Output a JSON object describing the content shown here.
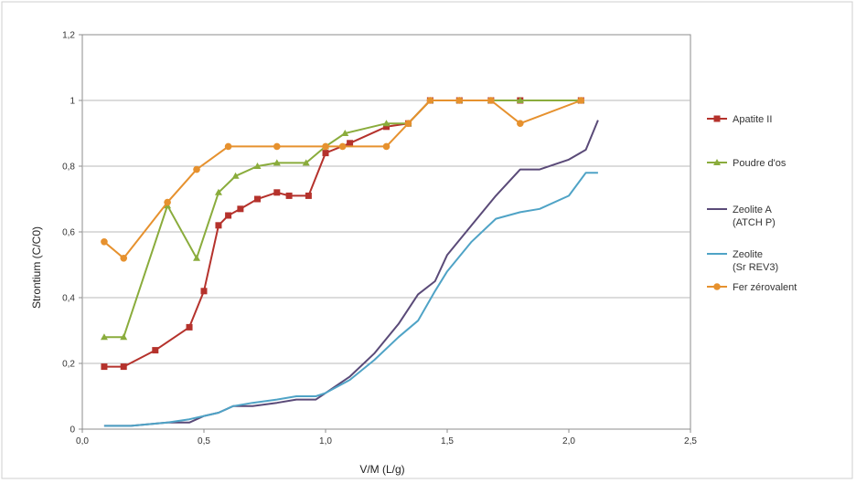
{
  "chart_data": {
    "type": "line",
    "xlabel": "V/M (L/g)",
    "ylabel": "Strontium (C/C0)",
    "xlim": [
      0.0,
      2.5
    ],
    "ylim": [
      0,
      1.2
    ],
    "x_ticks": [
      "0,0",
      "0,5",
      "1,0",
      "1,5",
      "2,0",
      "2,5"
    ],
    "y_ticks": [
      "0",
      "0,2",
      "0,4",
      "0,6",
      "0,8",
      "1",
      "1,2"
    ],
    "grid": "horizontal",
    "legend_position": "right",
    "series": [
      {
        "name": "Apatite II",
        "color": "#b5322c",
        "marker": "square",
        "x": [
          0.09,
          0.17,
          0.3,
          0.44,
          0.5,
          0.56,
          0.6,
          0.65,
          0.72,
          0.8,
          0.85,
          0.93,
          1.0,
          1.1,
          1.25,
          1.34,
          1.43,
          1.55,
          1.68,
          1.8,
          2.05
        ],
        "y": [
          0.19,
          0.19,
          0.24,
          0.31,
          0.42,
          0.62,
          0.65,
          0.67,
          0.7,
          0.72,
          0.71,
          0.71,
          0.84,
          0.87,
          0.92,
          0.93,
          1.0,
          1.0,
          1.0,
          1.0,
          1.0
        ]
      },
      {
        "name": "Poudre d'os",
        "color": "#8aac3c",
        "marker": "triangle",
        "x": [
          0.09,
          0.17,
          0.35,
          0.47,
          0.56,
          0.63,
          0.72,
          0.8,
          0.92,
          1.0,
          1.08,
          1.25,
          1.34,
          1.43,
          1.55,
          1.68,
          1.8,
          2.05
        ],
        "y": [
          0.28,
          0.28,
          0.68,
          0.52,
          0.72,
          0.77,
          0.8,
          0.81,
          0.81,
          0.86,
          0.9,
          0.93,
          0.93,
          1.0,
          1.0,
          1.0,
          1.0,
          1.0
        ]
      },
      {
        "name": "Zeolite A (ATCH P)",
        "color": "#5a4a78",
        "marker": "none",
        "x": [
          0.09,
          0.2,
          0.35,
          0.44,
          0.5,
          0.56,
          0.62,
          0.7,
          0.8,
          0.88,
          0.96,
          1.0,
          1.1,
          1.2,
          1.3,
          1.38,
          1.45,
          1.5,
          1.6,
          1.7,
          1.8,
          1.88,
          2.0,
          2.07,
          2.12
        ],
        "y": [
          0.01,
          0.01,
          0.02,
          0.02,
          0.04,
          0.05,
          0.07,
          0.07,
          0.08,
          0.09,
          0.09,
          0.11,
          0.16,
          0.23,
          0.32,
          0.41,
          0.45,
          0.53,
          0.62,
          0.71,
          0.79,
          0.79,
          0.82,
          0.85,
          0.94
        ]
      },
      {
        "name": "Zeolite (Sr REV3)",
        "color": "#4fa3c6",
        "marker": "none",
        "x": [
          0.09,
          0.2,
          0.35,
          0.44,
          0.5,
          0.56,
          0.62,
          0.7,
          0.8,
          0.88,
          0.96,
          1.0,
          1.1,
          1.2,
          1.3,
          1.38,
          1.45,
          1.5,
          1.6,
          1.7,
          1.8,
          1.88,
          2.0,
          2.07,
          2.12
        ],
        "y": [
          0.01,
          0.01,
          0.02,
          0.03,
          0.04,
          0.05,
          0.07,
          0.08,
          0.09,
          0.1,
          0.1,
          0.11,
          0.15,
          0.21,
          0.28,
          0.33,
          0.42,
          0.48,
          0.57,
          0.64,
          0.66,
          0.67,
          0.71,
          0.78,
          0.78
        ]
      },
      {
        "name": "Fer zérovalent",
        "color": "#e6912e",
        "marker": "circle",
        "x": [
          0.09,
          0.17,
          0.35,
          0.47,
          0.6,
          0.8,
          1.0,
          1.07,
          1.25,
          1.34,
          1.43,
          1.55,
          1.68,
          1.8,
          2.05
        ],
        "y": [
          0.57,
          0.52,
          0.69,
          0.79,
          0.86,
          0.86,
          0.86,
          0.86,
          0.86,
          0.93,
          1.0,
          1.0,
          1.0,
          0.93,
          1.0
        ]
      }
    ]
  }
}
